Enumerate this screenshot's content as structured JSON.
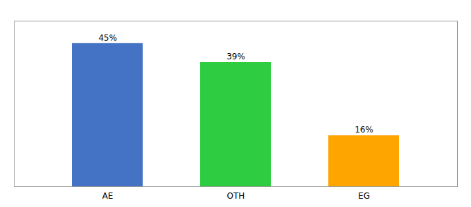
{
  "chart_data": {
    "type": "bar",
    "categories": [
      "AE",
      "OTH",
      "EG"
    ],
    "values": [
      45,
      39,
      16
    ],
    "value_labels": [
      "45%",
      "39%",
      "16%"
    ],
    "colors": [
      "#4472C4",
      "#2ECC40",
      "#FFA500"
    ],
    "ylim": [
      0,
      52
    ],
    "data_labels": true,
    "tick_labels": "x",
    "grid": false
  }
}
